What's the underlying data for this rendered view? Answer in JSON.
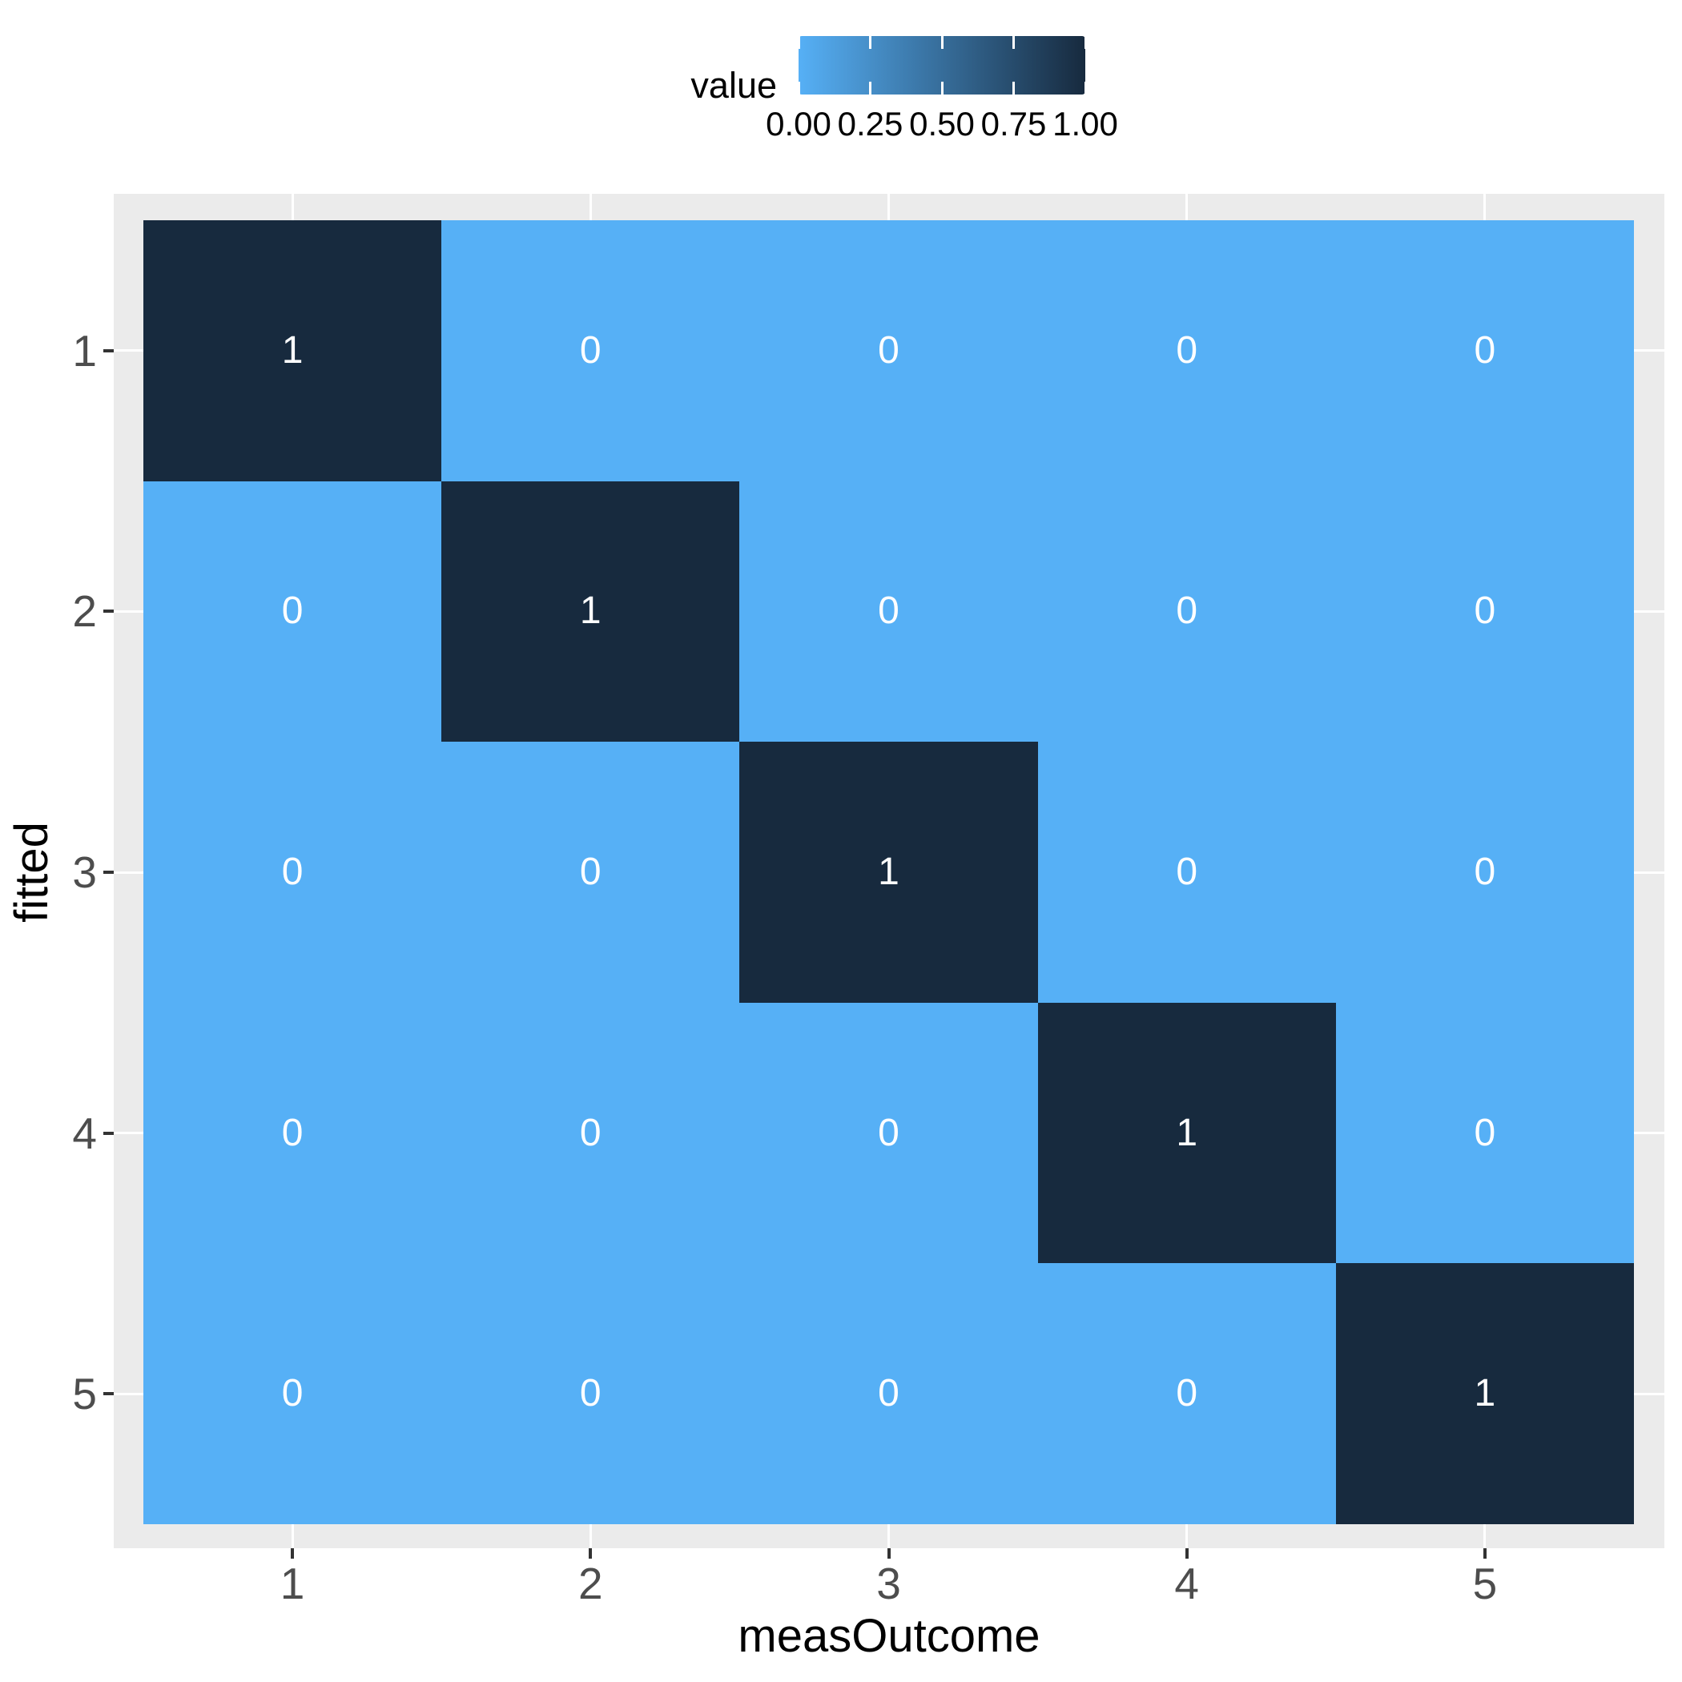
{
  "chart_data": {
    "type": "heatmap",
    "xlabel": "measOutcome",
    "ylabel": "fitted",
    "x_categories": [
      "1",
      "2",
      "3",
      "4",
      "5"
    ],
    "y_categories": [
      "1",
      "2",
      "3",
      "4",
      "5"
    ],
    "rows": [
      [
        1,
        0,
        0,
        0,
        0
      ],
      [
        0,
        1,
        0,
        0,
        0
      ],
      [
        0,
        0,
        1,
        0,
        0
      ],
      [
        0,
        0,
        0,
        1,
        0
      ],
      [
        0,
        0,
        0,
        0,
        1
      ]
    ],
    "value_range": [
      0,
      1
    ],
    "legend": {
      "title": "value",
      "position": "top",
      "tick_labels": [
        "0.00",
        "0.25",
        "0.50",
        "0.75",
        "1.00"
      ],
      "tick_values": [
        0,
        0.25,
        0.5,
        0.75,
        1
      ]
    },
    "colors": {
      "low": "#56B0F6",
      "high": "#172A3E",
      "panel_background": "#EBEBEB",
      "gridline": "#FFFFFF",
      "axis_text": "#4D4D4D",
      "tick_mark": "#333333",
      "cell_text": "#FFFFFF",
      "title_text": "#000000"
    },
    "grid": "major-on",
    "notes": "identity confusion matrix, diagonal = 1 (dark), off-diagonal = 0 (light)"
  }
}
